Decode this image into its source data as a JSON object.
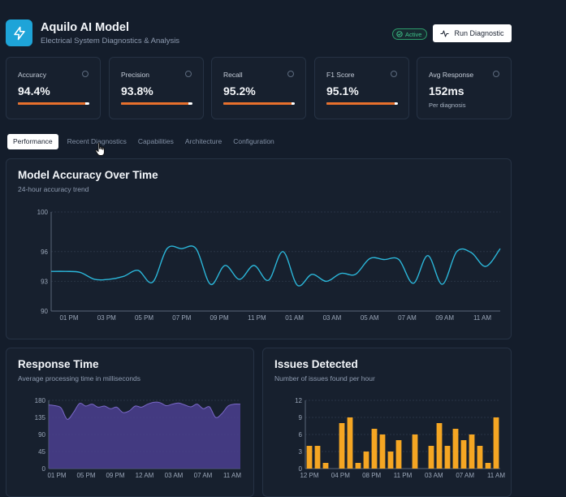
{
  "app": {
    "title": "Aquilo AI Model",
    "subtitle": "Electrical System Diagnostics & Analysis",
    "status": "Active",
    "run_button": "Run Diagnostic"
  },
  "colors": {
    "accent_blue": "#1ea4d8",
    "accent_orange": "#e8702c",
    "line": "#2bb6d9",
    "area": "#4b3f8f",
    "bars": "#f5a623",
    "active_green": "#3fc38a"
  },
  "metrics": [
    {
      "label": "Accuracy",
      "value": "94.4%",
      "progress": 0.944
    },
    {
      "label": "Precision",
      "value": "93.8%",
      "progress": 0.938
    },
    {
      "label": "Recall",
      "value": "95.2%",
      "progress": 0.952
    },
    {
      "label": "F1 Score",
      "value": "95.1%",
      "progress": 0.951
    },
    {
      "label": "Avg Response",
      "value": "152ms",
      "sub": "Per diagnosis"
    }
  ],
  "tabs": [
    "Performance",
    "Recent Diagnostics",
    "Capabilities",
    "Architecture",
    "Configuration"
  ],
  "accuracy_panel": {
    "title": "Model Accuracy Over Time",
    "subtitle": "24-hour accuracy trend"
  },
  "response_panel": {
    "title": "Response Time",
    "subtitle": "Average processing time in milliseconds"
  },
  "issues_panel": {
    "title": "Issues Detected",
    "subtitle": "Number of issues found per hour"
  },
  "chart_data": [
    {
      "type": "line",
      "title": "Model Accuracy Over Time",
      "ylim": [
        90,
        100
      ],
      "y_ticks": [
        "100",
        "96",
        "93",
        "90"
      ],
      "x_ticks": [
        "01 PM",
        "03 PM",
        "05 PM",
        "07 PM",
        "09 PM",
        "11 PM",
        "01 AM",
        "03 AM",
        "05 AM",
        "07 AM",
        "09 AM",
        "11 AM"
      ],
      "values": [
        94.0,
        94.0,
        93.9,
        93.2,
        93.2,
        93.5,
        94.1,
        92.9,
        96.3,
        96.3,
        96.3,
        92.7,
        94.6,
        93.2,
        94.6,
        93.1,
        96.0,
        92.6,
        93.7,
        93.0,
        93.8,
        93.7,
        95.3,
        95.2,
        95.2,
        92.8,
        95.6,
        92.7,
        96.0,
        95.9,
        94.5,
        96.3
      ],
      "grid": true
    },
    {
      "type": "area",
      "title": "Response Time",
      "ylim": [
        0,
        180
      ],
      "y_ticks": [
        "180",
        "135",
        "90",
        "45",
        "0"
      ],
      "x_ticks": [
        "01 PM",
        "05 PM",
        "09 PM",
        "12 AM",
        "03 AM",
        "07 AM",
        "11 AM"
      ],
      "values": [
        168,
        166,
        160,
        130,
        148,
        172,
        165,
        170,
        162,
        165,
        158,
        162,
        148,
        152,
        165,
        162,
        170,
        175,
        174,
        166,
        170,
        173,
        168,
        163,
        170,
        158,
        163,
        135,
        145,
        165,
        170,
        170
      ],
      "grid": true
    },
    {
      "type": "bar",
      "title": "Issues Detected",
      "ylim": [
        0,
        12
      ],
      "y_ticks": [
        "12",
        "9",
        "6",
        "3",
        "0"
      ],
      "x_ticks": [
        "12 PM",
        "04 PM",
        "08 PM",
        "11 PM",
        "03 AM",
        "07 AM",
        "11 AM"
      ],
      "values": [
        4,
        4,
        1,
        0,
        8,
        9,
        1,
        3,
        7,
        6,
        3,
        5,
        0,
        6,
        0,
        4,
        8,
        4,
        7,
        5,
        6,
        4,
        1,
        9
      ],
      "grid": true
    }
  ]
}
